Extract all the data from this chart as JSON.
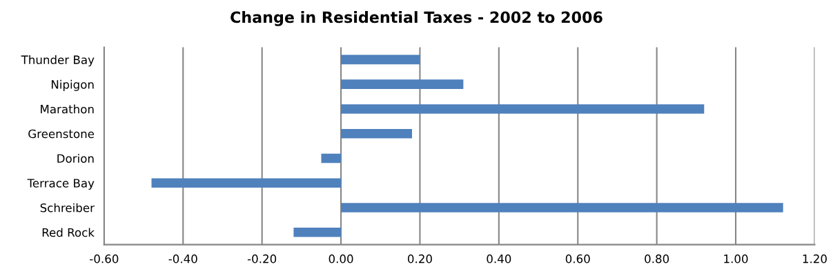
{
  "chart_data": {
    "type": "bar",
    "orientation": "horizontal",
    "title": "Change in Residential Taxes - 2002 to 2006",
    "categories": [
      "Thunder Bay",
      "Nipigon",
      "Marathon",
      "Greenstone",
      "Dorion",
      "Terrace Bay",
      "Schreiber",
      "Red Rock"
    ],
    "values": [
      0.2,
      0.31,
      0.92,
      0.18,
      -0.05,
      -0.48,
      1.12,
      -0.12
    ],
    "color": "#4f81bd",
    "xlim": [
      -0.6,
      1.2
    ],
    "xticks": [
      {
        "value": -0.6,
        "label": "-0.60"
      },
      {
        "value": -0.4,
        "label": "-0.40"
      },
      {
        "value": -0.2,
        "label": "-0.20"
      },
      {
        "value": 0,
        "label": "0.00"
      },
      {
        "value": 0.2,
        "label": "0.20"
      },
      {
        "value": 0.4,
        "label": "0.40"
      },
      {
        "value": 0.6,
        "label": "0.60"
      },
      {
        "value": 0.8,
        "label": "0.80"
      },
      {
        "value": 1.0,
        "label": "1.00"
      },
      {
        "value": 1.2,
        "label": "1.20"
      }
    ],
    "grid": "x"
  }
}
